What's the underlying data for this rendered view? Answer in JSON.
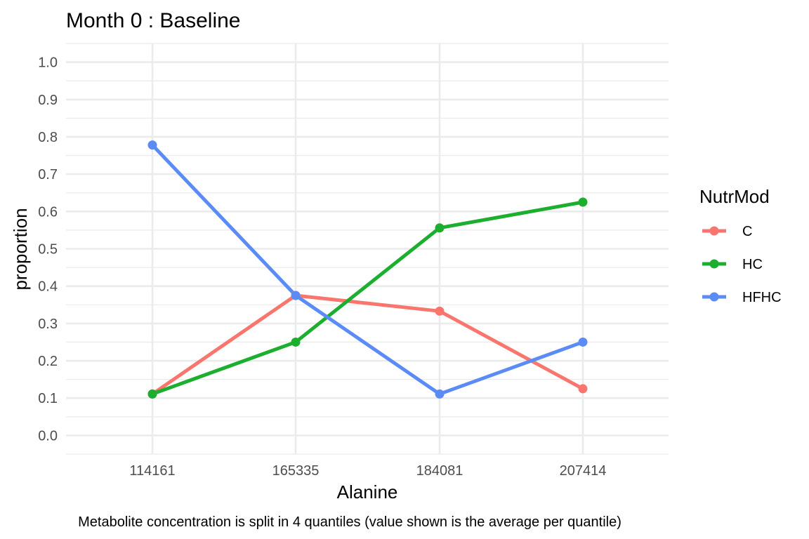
{
  "chart_data": {
    "type": "line",
    "title": "Month 0 : Baseline",
    "xlabel": "Alanine",
    "ylabel": "proportion",
    "caption": "Metabolite concentration is split in 4 quantiles (value shown is the average per quantile)",
    "categories": [
      "114161",
      "165335",
      "184081",
      "207414"
    ],
    "ylim": [
      -0.05,
      1.05
    ],
    "yticks": [
      0.0,
      0.1,
      0.2,
      0.3,
      0.4,
      0.5,
      0.6,
      0.7,
      0.8,
      0.9,
      1.0
    ],
    "ytick_labels": [
      "0.0",
      "0.1",
      "0.2",
      "0.3",
      "0.4",
      "0.5",
      "0.6",
      "0.7",
      "0.8",
      "0.9",
      "1.0"
    ],
    "grid": true,
    "legend": {
      "title": "NutrMod",
      "position": "right"
    },
    "series": [
      {
        "name": "C",
        "color": "#F8766D",
        "values": [
          0.111,
          0.375,
          0.333,
          0.125
        ]
      },
      {
        "name": "HC",
        "color": "#1CAE2E",
        "values": [
          0.111,
          0.25,
          0.556,
          0.625
        ]
      },
      {
        "name": "HFHC",
        "color": "#5B8CF5",
        "values": [
          0.778,
          0.375,
          0.111,
          0.25
        ]
      }
    ]
  }
}
